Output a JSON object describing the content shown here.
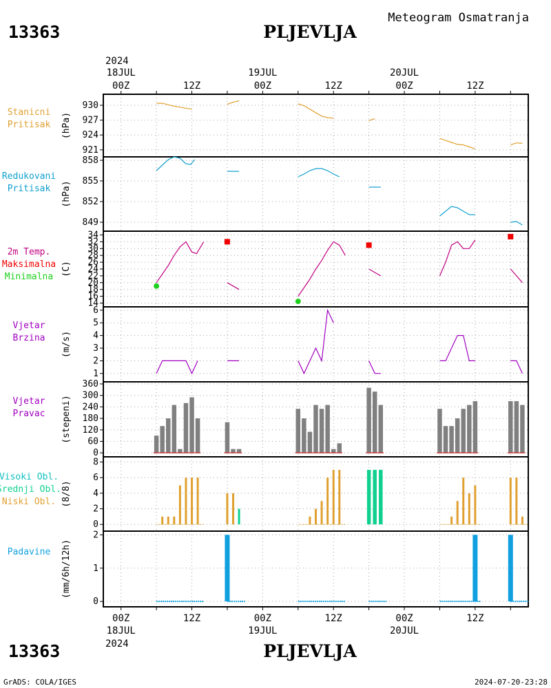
{
  "header": {
    "station_id": "13363",
    "station_name": "PLJEVLJA",
    "subtitle": "Meteogram Osmatranja"
  },
  "footer": {
    "source": "GrADS: COLA/IGES",
    "timestamp": "2024-07-20-23:28"
  },
  "time_axis": {
    "x_unit": "hours since 2024-07-18 00Z",
    "x_range": [
      -3,
      69
    ],
    "top_year": "2024",
    "bottom_year": "2024",
    "hour_labels": [
      {
        "h": 0,
        "label": "00Z"
      },
      {
        "h": 12,
        "label": "12Z"
      },
      {
        "h": 24,
        "label": "00Z"
      },
      {
        "h": 36,
        "label": "12Z"
      },
      {
        "h": 48,
        "label": "00Z"
      },
      {
        "h": 60,
        "label": "12Z"
      }
    ],
    "day_labels": [
      {
        "h": 0,
        "label": "18JUL"
      },
      {
        "h": 24,
        "label": "19JUL"
      },
      {
        "h": 48,
        "label": "20JUL"
      }
    ]
  },
  "colors": {
    "pressure_station": "#e0a030",
    "pressure_reduced": "#10a0d0",
    "temperature": "#c00080",
    "tmax": "#f00000",
    "tmin": "#20d020",
    "wind": "#a000c0",
    "dir_bar": "#808080",
    "dir_base": "#d04040",
    "cloud_high": "#10c0c0",
    "cloud_mid": "#10d090",
    "cloud_low": "#e0a030",
    "precip": "#10a0e0",
    "grid": "#a0a0a0"
  },
  "chart_data": [
    {
      "type": "line",
      "panel": "station_pressure",
      "label_lines": [
        "Stanicni",
        "Pritisak"
      ],
      "ylabel": "(hPa)",
      "ylim": [
        920,
        931.8
      ],
      "yticks": [
        921,
        924,
        927,
        930
      ],
      "series": [
        {
          "points": [
            [
              6,
              930.4
            ],
            [
              7,
              930.4
            ],
            [
              8,
              930.1
            ],
            [
              9,
              929.8
            ],
            [
              10,
              929.6
            ],
            [
              11,
              929.4
            ],
            [
              12,
              929.2
            ]
          ]
        },
        {
          "points": [
            [
              18,
              930.2
            ],
            [
              19,
              930.6
            ],
            [
              20,
              930.9
            ]
          ]
        },
        {
          "points": [
            [
              30,
              930.3
            ],
            [
              31,
              929.9
            ],
            [
              32,
              929.2
            ],
            [
              33,
              928.5
            ],
            [
              34,
              927.8
            ],
            [
              35,
              927.5
            ],
            [
              36,
              927.4
            ]
          ]
        },
        {
          "points": [
            [
              42,
              926.9
            ],
            [
              43,
              927.3
            ]
          ]
        },
        {
          "points": [
            [
              54,
              923.3
            ],
            [
              55,
              922.9
            ],
            [
              56,
              922.5
            ],
            [
              57,
              922.1
            ],
            [
              58,
              922.0
            ],
            [
              59,
              921.6
            ],
            [
              60,
              921.2
            ]
          ]
        },
        {
          "points": [
            [
              66,
              922.0
            ],
            [
              67,
              922.4
            ],
            [
              68,
              922.3
            ]
          ]
        }
      ]
    },
    {
      "type": "line",
      "panel": "reduced_pressure",
      "label_lines": [
        "Redukovani",
        "Pritisak"
      ],
      "ylabel": "(hPa)",
      "ylim": [
        848,
        858.2
      ],
      "yticks": [
        849,
        852,
        855,
        858
      ],
      "series": [
        {
          "points": [
            [
              6,
              856.5
            ],
            [
              7,
              857.3
            ],
            [
              8,
              858.1
            ],
            [
              9,
              858.5
            ],
            [
              10,
              858.3
            ],
            [
              11,
              857.5
            ],
            [
              11.8,
              857.4
            ],
            [
              12.5,
              858.1
            ]
          ]
        },
        {
          "points": [
            [
              18,
              856.4
            ],
            [
              20,
              856.4
            ]
          ]
        },
        {
          "points": [
            [
              30,
              855.6
            ],
            [
              31,
              856.0
            ],
            [
              32,
              856.5
            ],
            [
              33,
              856.8
            ],
            [
              34,
              856.8
            ],
            [
              35,
              856.5
            ],
            [
              36,
              856.0
            ],
            [
              37,
              855.6
            ]
          ]
        },
        {
          "points": [
            [
              42,
              854.1
            ],
            [
              44,
              854.1
            ]
          ]
        },
        {
          "points": [
            [
              54,
              849.9
            ],
            [
              55,
              850.6
            ],
            [
              56,
              851.3
            ],
            [
              57,
              851.1
            ],
            [
              58,
              850.6
            ],
            [
              59,
              850.1
            ],
            [
              60,
              850.1
            ]
          ]
        },
        {
          "points": [
            [
              66,
              849.0
            ],
            [
              67,
              849.1
            ],
            [
              68,
              848.6
            ]
          ]
        }
      ]
    },
    {
      "type": "line",
      "panel": "temperature",
      "label_lines": [
        "2m Temp.",
        "Maksimalna",
        "Minimalna"
      ],
      "ylabel": "(C)",
      "ylim": [
        13.5,
        34.5
      ],
      "yticks": [
        14,
        16,
        18,
        20,
        22,
        24,
        26,
        28,
        30,
        32,
        34
      ],
      "series": [
        {
          "points": [
            [
              6,
              20.0
            ],
            [
              8,
              25.0
            ],
            [
              9,
              28.0
            ],
            [
              10,
              30.5
            ],
            [
              11,
              32.0
            ],
            [
              12,
              29.0
            ],
            [
              12.8,
              28.5
            ],
            [
              14,
              32.0
            ]
          ]
        },
        {
          "points": [
            [
              18,
              20.0
            ],
            [
              19,
              19.0
            ],
            [
              20,
              18.0
            ]
          ]
        },
        {
          "points": [
            [
              30,
              16.0
            ],
            [
              32,
              21.0
            ],
            [
              33,
              24.0
            ],
            [
              34,
              26.5
            ],
            [
              35,
              29.5
            ],
            [
              36,
              32.0
            ],
            [
              37,
              31.0
            ],
            [
              38,
              28.0
            ]
          ]
        },
        {
          "points": [
            [
              42,
              24.0
            ],
            [
              43,
              23.0
            ],
            [
              44,
              22.0
            ]
          ]
        },
        {
          "points": [
            [
              54,
              22.0
            ],
            [
              55,
              26.0
            ],
            [
              56,
              31.0
            ],
            [
              57,
              32.0
            ],
            [
              58,
              30.0
            ],
            [
              59,
              30.0
            ],
            [
              60,
              32.5
            ]
          ]
        },
        {
          "points": [
            [
              66,
              24.0
            ],
            [
              67,
              22.0
            ],
            [
              68,
              20.0
            ]
          ]
        }
      ],
      "tmax_points": [
        [
          18,
          32.0
        ],
        [
          42,
          31.0
        ],
        [
          66,
          33.5
        ]
      ],
      "tmin_points": [
        [
          6,
          19.0
        ],
        [
          30,
          14.5
        ]
      ]
    },
    {
      "type": "line",
      "panel": "wind_speed",
      "label_lines": [
        "Vjetar",
        "Brzina"
      ],
      "ylabel": "(m/s)",
      "ylim": [
        0.5,
        6.1
      ],
      "yticks": [
        1,
        2,
        3,
        4,
        5,
        6
      ],
      "series": [
        {
          "points": [
            [
              6,
              1
            ],
            [
              7,
              2
            ],
            [
              8,
              2
            ],
            [
              9,
              2
            ],
            [
              10,
              2
            ],
            [
              11,
              2
            ],
            [
              12,
              1
            ],
            [
              13,
              2
            ]
          ]
        },
        {
          "points": [
            [
              18,
              2
            ],
            [
              20,
              2
            ]
          ]
        },
        {
          "points": [
            [
              30,
              2
            ],
            [
              31,
              1
            ],
            [
              32,
              2
            ],
            [
              33,
              3
            ],
            [
              34,
              2
            ],
            [
              35,
              6
            ],
            [
              36,
              5
            ]
          ]
        },
        {
          "points": [
            [
              42,
              2
            ],
            [
              43,
              1
            ],
            [
              44,
              1
            ]
          ]
        },
        {
          "points": [
            [
              54,
              2
            ],
            [
              55,
              2
            ],
            [
              56,
              3
            ],
            [
              57,
              4
            ],
            [
              58,
              4
            ],
            [
              59,
              2
            ],
            [
              60,
              2
            ]
          ]
        },
        {
          "points": [
            [
              66,
              2
            ],
            [
              67,
              2
            ],
            [
              68,
              1
            ]
          ]
        }
      ]
    },
    {
      "type": "bar",
      "panel": "wind_direction",
      "label_lines": [
        "Vjetar",
        "Pravac"
      ],
      "ylabel": "(stepeni)",
      "ylim": [
        -10,
        360
      ],
      "yticks": [
        0,
        60,
        120,
        180,
        240,
        300,
        360
      ],
      "ytick_labels": [
        "0",
        "60",
        "120",
        "180",
        "240",
        "300",
        "360"
      ],
      "bars": [
        [
          6,
          90
        ],
        [
          7,
          140
        ],
        [
          8,
          180
        ],
        [
          9,
          250
        ],
        [
          10,
          20
        ],
        [
          11,
          260
        ],
        [
          12,
          290
        ],
        [
          13,
          180
        ],
        [
          18,
          160
        ],
        [
          19,
          20
        ],
        [
          20,
          20
        ],
        [
          30,
          230
        ],
        [
          31,
          180
        ],
        [
          32,
          110
        ],
        [
          33,
          250
        ],
        [
          34,
          230
        ],
        [
          35,
          250
        ],
        [
          36,
          20
        ],
        [
          37,
          50
        ],
        [
          42,
          340
        ],
        [
          43,
          320
        ],
        [
          44,
          250
        ],
        [
          54,
          230
        ],
        [
          55,
          140
        ],
        [
          56,
          140
        ],
        [
          57,
          180
        ],
        [
          58,
          230
        ],
        [
          59,
          250
        ],
        [
          60,
          270
        ],
        [
          66,
          270
        ],
        [
          67,
          270
        ],
        [
          68,
          250
        ]
      ]
    },
    {
      "type": "bar",
      "panel": "cloud_cover",
      "label_lines": [
        "Visoki Obl.",
        "Srednji Obl.",
        "Niski Obl."
      ],
      "ylabel": "(8/8)",
      "ylim": [
        -0.6,
        8.4
      ],
      "yticks": [
        0,
        2,
        4,
        6,
        8
      ],
      "low_bars": [
        [
          7,
          1
        ],
        [
          8,
          1
        ],
        [
          9,
          1
        ],
        [
          10,
          5
        ],
        [
          11,
          6
        ],
        [
          12,
          6
        ],
        [
          13,
          6
        ],
        [
          18,
          4
        ],
        [
          19,
          4
        ],
        [
          32,
          1
        ],
        [
          33,
          2
        ],
        [
          34,
          3
        ],
        [
          35,
          6
        ],
        [
          36,
          7
        ],
        [
          37,
          7
        ],
        [
          56,
          1
        ],
        [
          57,
          3
        ],
        [
          58,
          6
        ],
        [
          59,
          4
        ],
        [
          60,
          5
        ],
        [
          66,
          6
        ],
        [
          67,
          6
        ],
        [
          68,
          1
        ]
      ],
      "mid_bars": [
        [
          18,
          3
        ],
        [
          19,
          2
        ],
        [
          20,
          2
        ],
        [
          42,
          7
        ],
        [
          43,
          7
        ],
        [
          44,
          7
        ]
      ],
      "low_baseline_runs": [
        [
          6,
          14
        ],
        [
          30,
          38
        ],
        [
          54,
          61
        ],
        [
          66,
          69
        ]
      ],
      "mid_baseline_runs": [
        [
          6,
          14
        ],
        [
          30,
          38
        ],
        [
          54,
          61
        ],
        [
          66,
          69
        ]
      ]
    },
    {
      "type": "bar",
      "panel": "precipitation",
      "label_lines": [
        "Padavine"
      ],
      "ylabel": "(mm/6h/12h)",
      "ylim": [
        -0.1,
        2.05
      ],
      "yticks": [
        0,
        1,
        2
      ],
      "bars": [
        [
          18,
          2
        ],
        [
          60,
          2
        ],
        [
          66,
          2
        ]
      ],
      "baseline_runs": [
        [
          6,
          14
        ],
        [
          18,
          21
        ],
        [
          30,
          38
        ],
        [
          42,
          45
        ],
        [
          54,
          61
        ],
        [
          66,
          69
        ]
      ]
    }
  ]
}
